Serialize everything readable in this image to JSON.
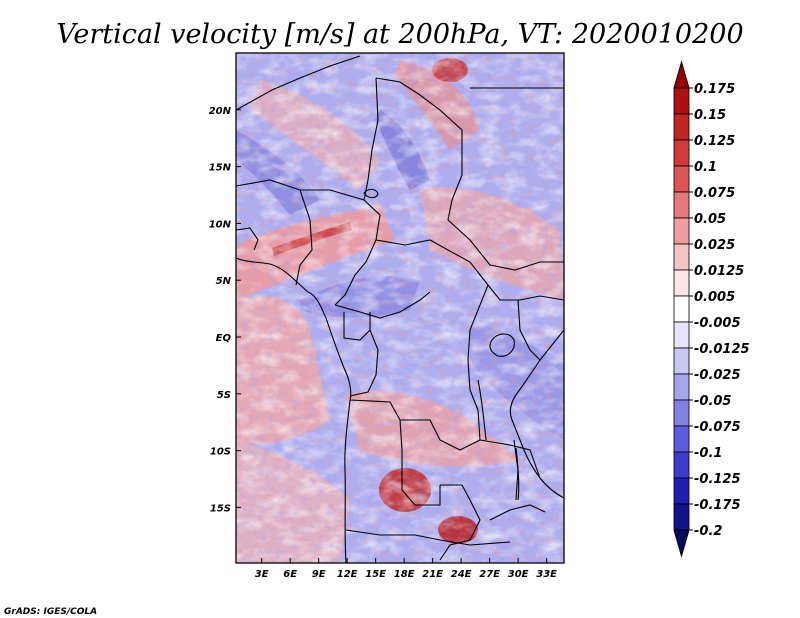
{
  "chart_data": {
    "type": "heatmap",
    "title": "Vertical velocity [m/s] at 200hPa, VT: 2020010200",
    "variable": "Vertical velocity",
    "units": "m/s",
    "level": "200hPa",
    "valid_time": "2020010200",
    "lon_range": [
      0,
      35
    ],
    "lat_range": [
      -20,
      25
    ],
    "x_ticks": [
      {
        "value": 3,
        "label": "3E"
      },
      {
        "value": 6,
        "label": "6E"
      },
      {
        "value": 9,
        "label": "9E"
      },
      {
        "value": 12,
        "label": "12E"
      },
      {
        "value": 15,
        "label": "15E"
      },
      {
        "value": 18,
        "label": "18E"
      },
      {
        "value": 21,
        "label": "21E"
      },
      {
        "value": 24,
        "label": "24E"
      },
      {
        "value": 27,
        "label": "27E"
      },
      {
        "value": 30,
        "label": "30E"
      },
      {
        "value": 33,
        "label": "33E"
      }
    ],
    "y_ticks": [
      {
        "value": 20,
        "label": "20N"
      },
      {
        "value": 15,
        "label": "15N"
      },
      {
        "value": 10,
        "label": "10N"
      },
      {
        "value": 5,
        "label": "5N"
      },
      {
        "value": 0,
        "label": "EQ"
      },
      {
        "value": -5,
        "label": "5S"
      },
      {
        "value": -10,
        "label": "10S"
      },
      {
        "value": -15,
        "label": "15S"
      }
    ],
    "colorbar": {
      "levels": [
        "0.175",
        "0.15",
        "0.125",
        "0.1",
        "0.075",
        "0.05",
        "0.025",
        "0.0125",
        "0.005",
        "-0.005",
        "-0.0125",
        "-0.025",
        "-0.05",
        "-0.075",
        "-0.1",
        "-0.125",
        "-0.175",
        "-0.2"
      ],
      "colors": [
        "#9b0000",
        "#b01010",
        "#c02424",
        "#d03a3a",
        "#dc5656",
        "#e67a7a",
        "#f09e9e",
        "#f7c4c4",
        "#fce6e6",
        "#ffffff",
        "#e6e6fa",
        "#c8c8f5",
        "#a5a5ee",
        "#8080e6",
        "#5c5cdc",
        "#3c3ccc",
        "#2020b0",
        "#12128a",
        "#0a0a60"
      ]
    }
  },
  "credit": "GrADS: IGES/COLA"
}
